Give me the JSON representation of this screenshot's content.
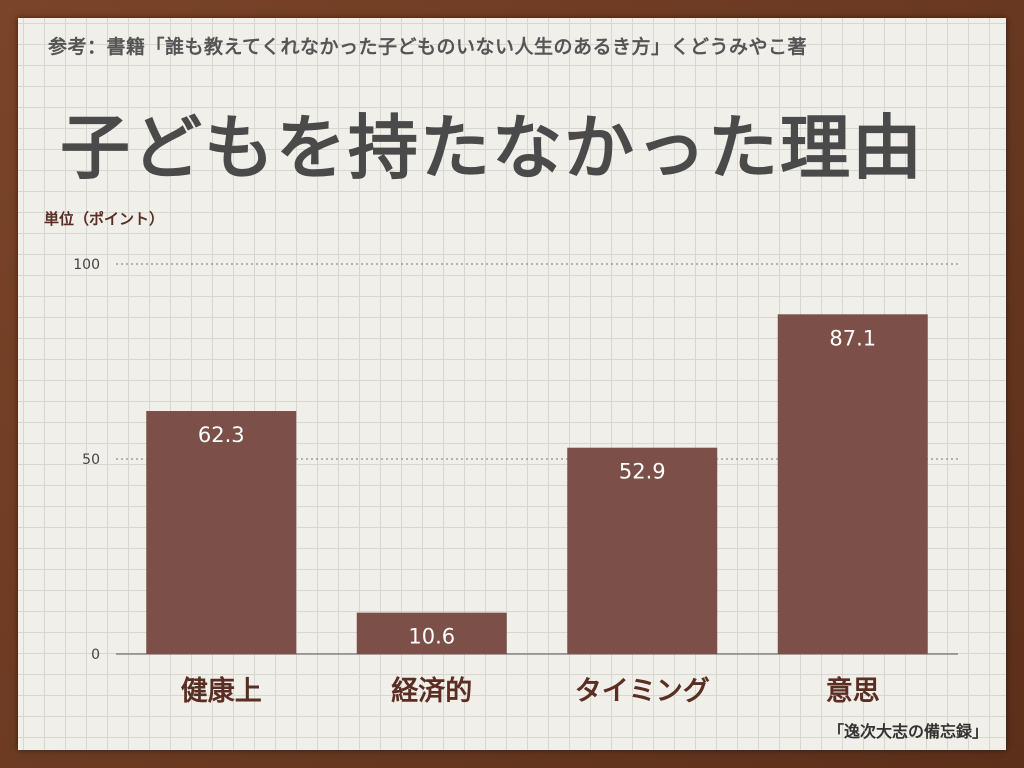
{
  "header": {
    "reference": "参考：書籍「誰も教えてくれなかった子どものいない人生のあるき方」くどうみやこ著",
    "title": "子どもを持たなかった理由",
    "unit_label": "単位（ポイント）"
  },
  "footer": {
    "credit": "「逸次大志の備忘録」"
  },
  "colors": {
    "bar": "#7c5048",
    "title": "#4a4a4a",
    "accent": "#5a2e22"
  },
  "chart_data": {
    "type": "bar",
    "title": "子どもを持たなかった理由",
    "ylabel": "単位（ポイント）",
    "categories": [
      "健康上",
      "経済的",
      "タイミング",
      "意思"
    ],
    "values": [
      62.3,
      10.6,
      52.9,
      87.1
    ],
    "value_labels": [
      "62.3",
      "10.6",
      "52.9",
      "87.1"
    ],
    "yticks": [
      0,
      50,
      100
    ],
    "ylim": [
      0,
      100
    ],
    "grid": "dotted-horizontal",
    "legend": "none"
  }
}
